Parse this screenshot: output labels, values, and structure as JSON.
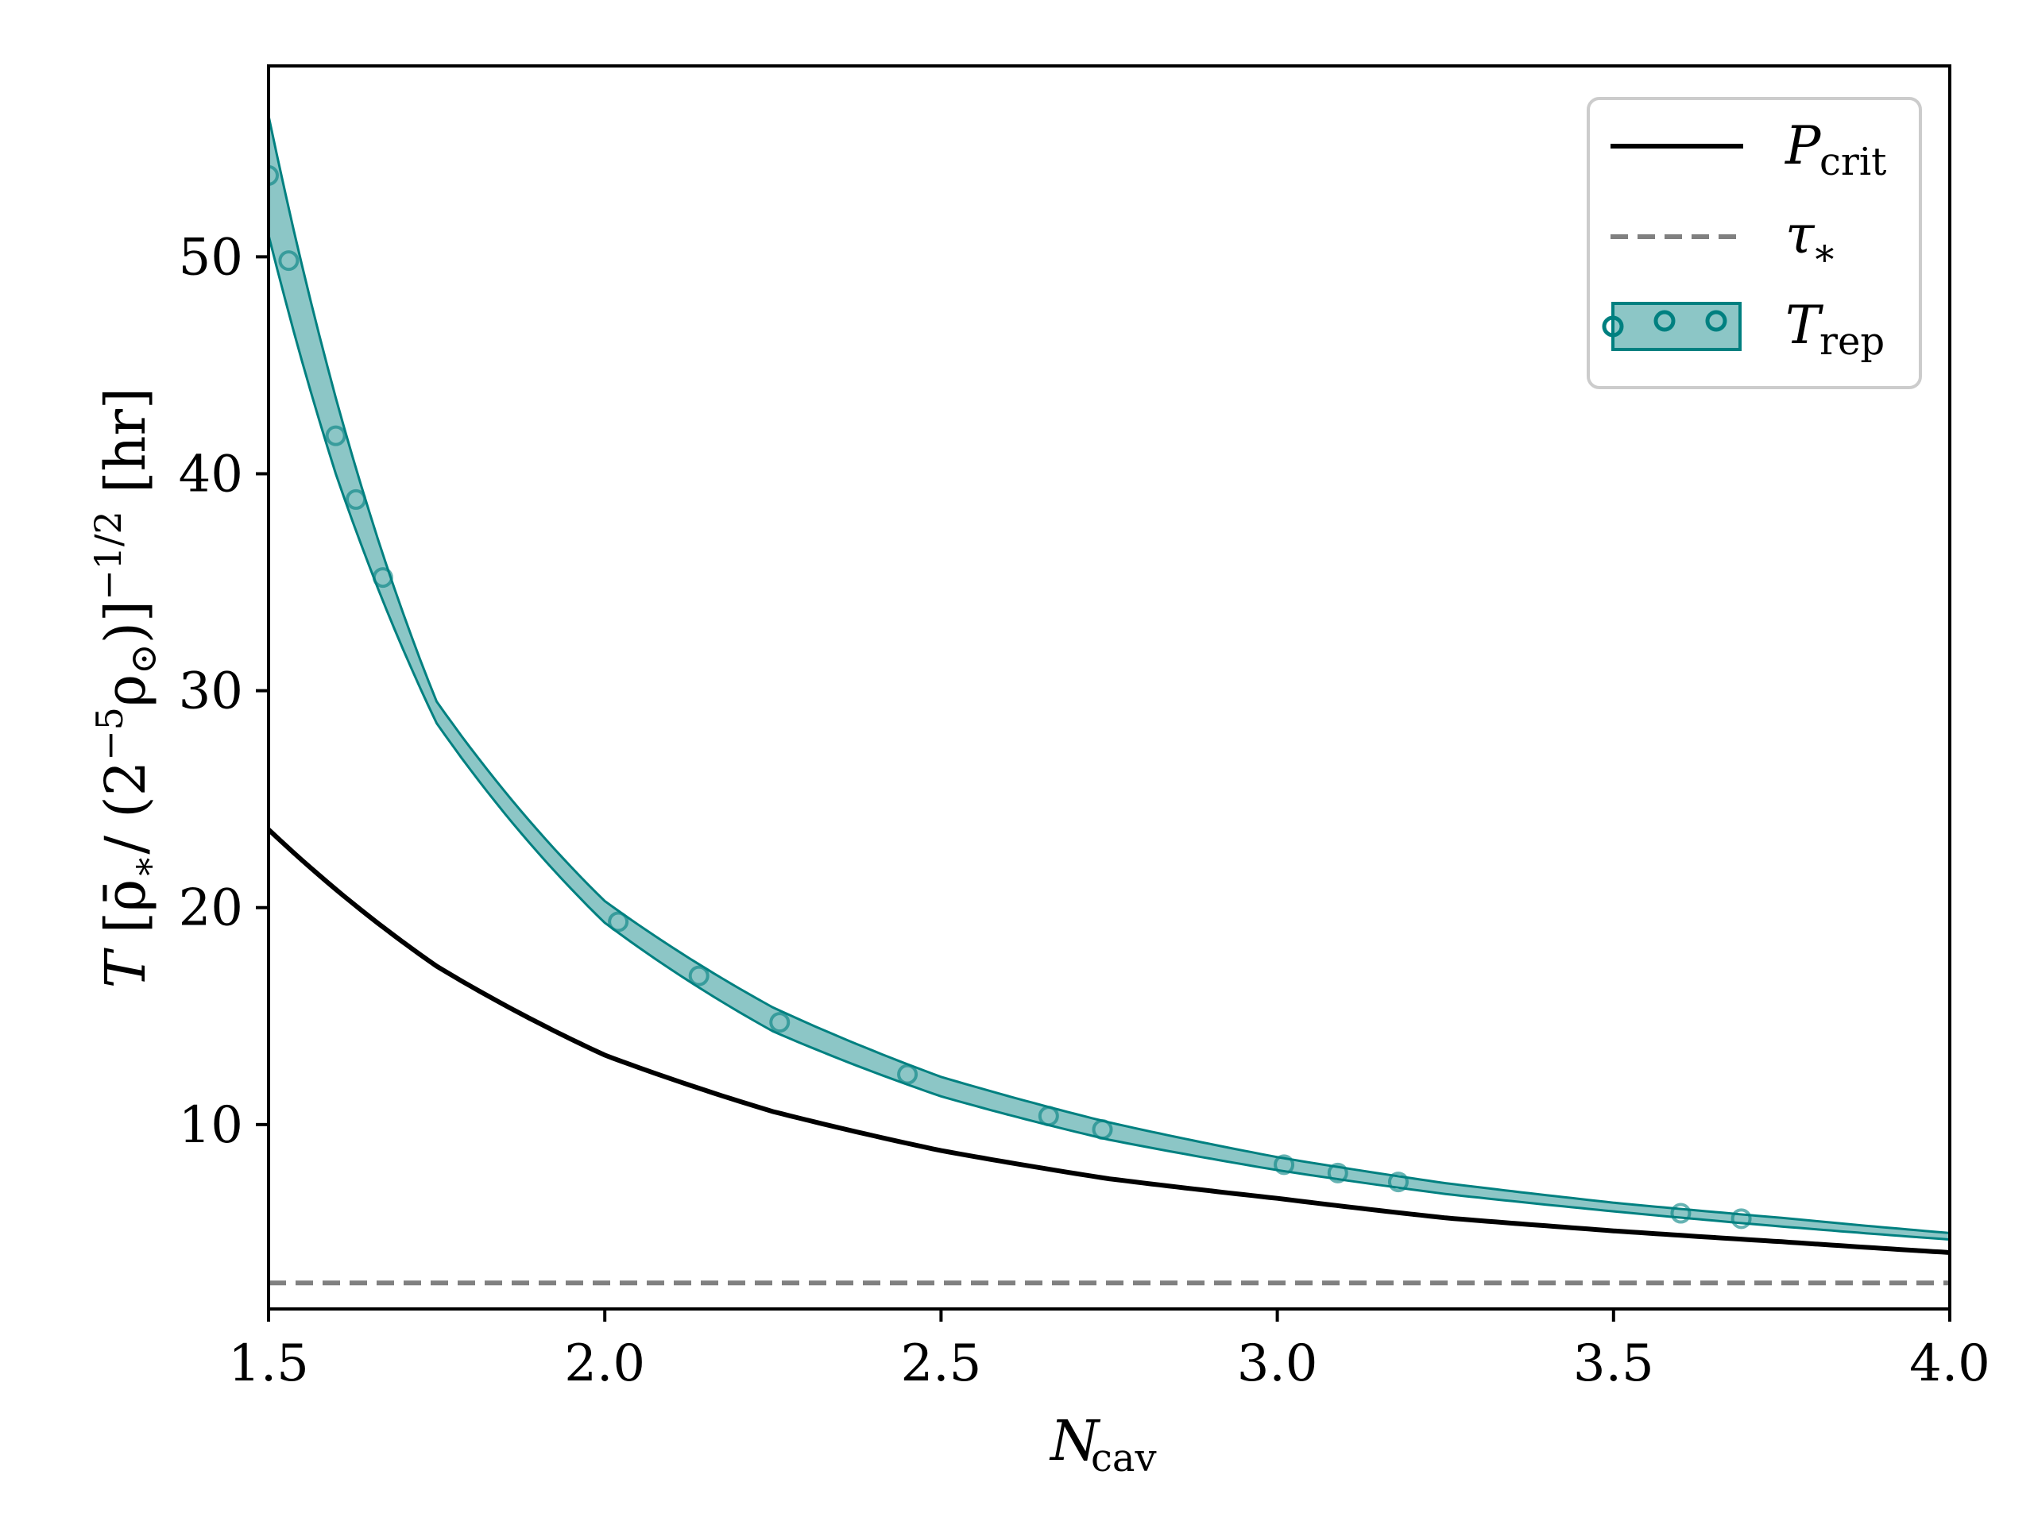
{
  "chart_data": {
    "type": "line",
    "xlabel": "N_cav",
    "ylabel": "T [ρ̄*/(2⁻⁵ρ☉)]^(−1/2) [hr]",
    "xlim": [
      1.5,
      4.0
    ],
    "ylim": [
      1.5,
      58.8
    ],
    "x_ticks": [
      "1.5",
      "2.0",
      "2.5",
      "3.0",
      "3.5",
      "4.0"
    ],
    "y_ticks": [
      "10",
      "20",
      "30",
      "40",
      "50"
    ],
    "grid": false,
    "legend_position": "top-right",
    "colors": {
      "p_crit": "#000000",
      "tau": "#808080",
      "t_rep_fill": "#008080",
      "t_rep_edge": "#008080"
    },
    "series": [
      {
        "name": "P_crit",
        "style": "solid",
        "x": [
          1.5,
          1.75,
          2.0,
          2.25,
          2.5,
          2.75,
          3.0,
          3.25,
          3.5,
          3.75,
          4.0
        ],
        "y": [
          23.6,
          17.3,
          13.2,
          10.6,
          8.8,
          7.5,
          6.6,
          5.7,
          5.1,
          4.6,
          4.1
        ]
      },
      {
        "name": "τ_*",
        "style": "dashed",
        "x": [
          1.5,
          4.0
        ],
        "y": [
          2.7,
          2.7
        ]
      },
      {
        "name": "T_rep",
        "style": "band",
        "x": [
          1.5,
          1.6,
          1.75,
          2.0,
          2.25,
          2.5,
          2.75,
          3.0,
          3.25,
          3.5,
          3.75,
          4.0
        ],
        "y_low": [
          51.0,
          40.0,
          28.5,
          19.3,
          14.3,
          11.3,
          9.3,
          7.9,
          6.8,
          6.0,
          5.3,
          4.7
        ],
        "y_high": [
          56.5,
          43.5,
          29.5,
          20.3,
          15.4,
          12.2,
          10.1,
          8.5,
          7.3,
          6.4,
          5.7,
          5.0
        ]
      }
    ]
  }
}
